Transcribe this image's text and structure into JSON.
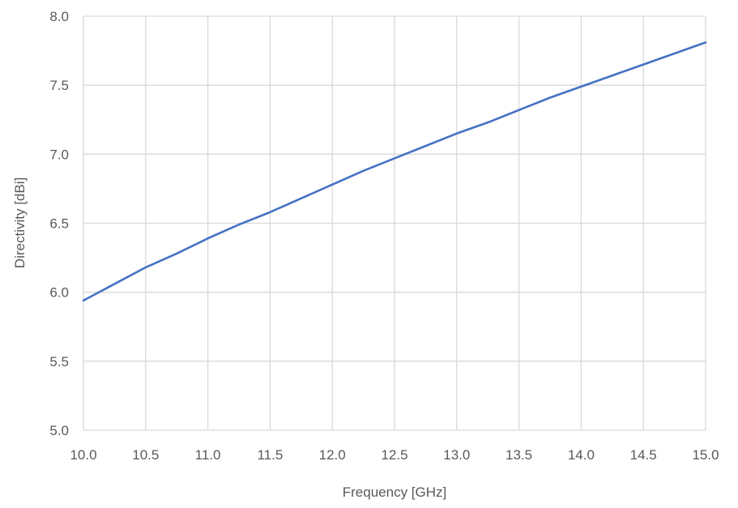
{
  "chart_data": {
    "type": "line",
    "title": "",
    "xlabel": "Frequency [GHz]",
    "ylabel": "Directivity [dBi]",
    "xlim": [
      10.0,
      15.0
    ],
    "ylim": [
      5.0,
      8.0
    ],
    "x_ticks": [
      "10.0",
      "10.5",
      "11.0",
      "11.5",
      "12.0",
      "12.5",
      "13.0",
      "13.5",
      "14.0",
      "14.5",
      "15.0"
    ],
    "y_ticks": [
      "5.0",
      "5.5",
      "6.0",
      "6.5",
      "7.0",
      "7.5",
      "8.0"
    ],
    "grid": true,
    "legend": "none",
    "series": [
      {
        "color": "#4472c4",
        "x": [
          10.0,
          10.25,
          10.5,
          10.75,
          11.0,
          11.25,
          11.5,
          11.75,
          12.0,
          12.25,
          12.5,
          12.75,
          13.0,
          13.25,
          13.5,
          13.75,
          14.0,
          14.25,
          14.5,
          14.75,
          15.0
        ],
        "y": [
          5.94,
          6.06,
          6.18,
          6.28,
          6.39,
          6.49,
          6.58,
          6.68,
          6.78,
          6.88,
          6.97,
          7.06,
          7.15,
          7.23,
          7.32,
          7.41,
          7.49,
          7.57,
          7.65,
          7.73,
          7.81
        ]
      }
    ]
  }
}
